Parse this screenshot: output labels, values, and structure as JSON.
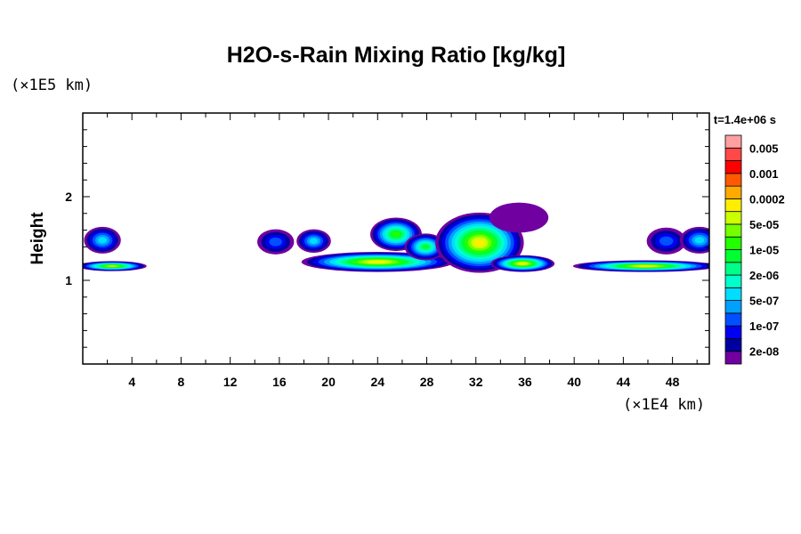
{
  "chart_data": {
    "type": "heatmap",
    "subtype": "filled-contour",
    "title": "H2O-s-Rain Mixing Ratio [kg/kg]",
    "xlabel": "",
    "ylabel": "Height",
    "x_unit": "(×1E4 km)",
    "y_unit": "(×1E5 km)",
    "time_label": "t=1.4e+06 s",
    "xlim": [
      0,
      51
    ],
    "ylim": [
      0,
      3
    ],
    "x_ticks": [
      4,
      8,
      12,
      16,
      20,
      24,
      28,
      32,
      36,
      40,
      44,
      48
    ],
    "y_ticks": [
      1,
      2
    ],
    "colorbar": {
      "colors_bottom_to_top": [
        "#7000a0",
        "#0000a0",
        "#0000f0",
        "#0050ff",
        "#00a0ff",
        "#00ddff",
        "#00ffcc",
        "#00ff88",
        "#00ff30",
        "#22ff00",
        "#77ff00",
        "#ccff00",
        "#ffee00",
        "#ffaa00",
        "#ff5a00",
        "#ff0000",
        "#ff4848",
        "#ffa0a0"
      ],
      "labels": [
        {
          "text": "2e-08",
          "boundary": 1
        },
        {
          "text": "1e-07",
          "boundary": 3
        },
        {
          "text": "5e-07",
          "boundary": 5
        },
        {
          "text": "2e-06",
          "boundary": 7
        },
        {
          "text": "1e-05",
          "boundary": 9
        },
        {
          "text": "5e-05",
          "boundary": 11
        },
        {
          "text": "0.0002",
          "boundary": 13
        },
        {
          "text": "0.001",
          "boundary": 15
        },
        {
          "text": "0.005",
          "boundary": 17
        }
      ]
    },
    "features": [
      {
        "name": "cloud-left",
        "x": 1.6,
        "y": 1.48,
        "hw": 1.5,
        "hh": 0.16,
        "peak_level": 5
      },
      {
        "name": "rain-band-left",
        "x": 2.4,
        "y": 1.17,
        "hw": 2.8,
        "hh": 0.06,
        "peak_level": 11
      },
      {
        "name": "cloud-16",
        "x": 15.7,
        "y": 1.46,
        "hw": 1.5,
        "hh": 0.15,
        "peak_level": 3
      },
      {
        "name": "cloud-19",
        "x": 18.8,
        "y": 1.47,
        "hw": 1.4,
        "hh": 0.14,
        "peak_level": 5
      },
      {
        "name": "rain-band-center",
        "x": 24.0,
        "y": 1.22,
        "hw": 6.2,
        "hh": 0.12,
        "peak_level": 12
      },
      {
        "name": "cloud-25",
        "x": 25.5,
        "y": 1.55,
        "hw": 2.1,
        "hh": 0.2,
        "peak_level": 9
      },
      {
        "name": "cloud-28",
        "x": 27.9,
        "y": 1.4,
        "hw": 1.7,
        "hh": 0.16,
        "peak_level": 8
      },
      {
        "name": "cloud-32",
        "x": 32.3,
        "y": 1.45,
        "hw": 3.6,
        "hh": 0.36,
        "peak_level": 12
      },
      {
        "name": "rain-band-35",
        "x": 35.8,
        "y": 1.2,
        "hw": 2.6,
        "hh": 0.1,
        "peak_level": 12
      },
      {
        "name": "ice-wisps",
        "x": 35.5,
        "y": 1.75,
        "hw": 2.4,
        "hh": 0.18,
        "peak_level": 0
      },
      {
        "name": "cloud-47",
        "x": 47.5,
        "y": 1.47,
        "hw": 1.6,
        "hh": 0.16,
        "peak_level": 3
      },
      {
        "name": "cloud-50",
        "x": 50.2,
        "y": 1.48,
        "hw": 1.6,
        "hh": 0.16,
        "peak_level": 5
      },
      {
        "name": "rain-band-right",
        "x": 45.8,
        "y": 1.17,
        "hw": 5.9,
        "hh": 0.07,
        "peak_level": 12
      }
    ]
  }
}
